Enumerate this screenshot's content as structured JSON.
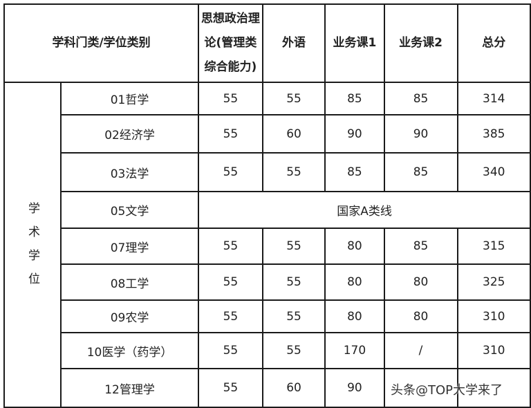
{
  "header": {
    "category": "学科门类/学位类别",
    "politics": "思想政治理论(管理类综合能力)",
    "politics_lines": [
      "思想政治理",
      "论(管理类",
      "综合能力)"
    ],
    "foreign": "外语",
    "course1": "业务课1",
    "course2": "业务课2",
    "total": "总分"
  },
  "group_label": "学术学位",
  "group_chars": [
    "学",
    "术",
    "学",
    "位"
  ],
  "rows": [
    {
      "name": "01哲学",
      "politics": "55",
      "foreign": "55",
      "course1": "85",
      "course2": "85",
      "total": "314"
    },
    {
      "name": "02经济学",
      "politics": "55",
      "foreign": "60",
      "course1": "90",
      "course2": "90",
      "total": "385"
    },
    {
      "name": "03法学",
      "politics": "55",
      "foreign": "55",
      "course1": "85",
      "course2": "85",
      "total": "340"
    },
    {
      "name": "05文学",
      "merged": "国家A类线"
    },
    {
      "name": "07理学",
      "politics": "55",
      "foreign": "55",
      "course1": "80",
      "course2": "85",
      "total": "315"
    },
    {
      "name": "08工学",
      "politics": "55",
      "foreign": "55",
      "course1": "80",
      "course2": "80",
      "total": "325"
    },
    {
      "name": "09农学",
      "politics": "55",
      "foreign": "55",
      "course1": "80",
      "course2": "80",
      "total": "310"
    },
    {
      "name": "10医学（药学）",
      "politics": "55",
      "foreign": "55",
      "course1": "170",
      "course2": "/",
      "total": "310"
    },
    {
      "name": "12管理学",
      "politics": "55",
      "foreign": "60",
      "course1": "90",
      "course2": "",
      "total": ""
    }
  ],
  "watermark": "头条@TOP大学来了"
}
